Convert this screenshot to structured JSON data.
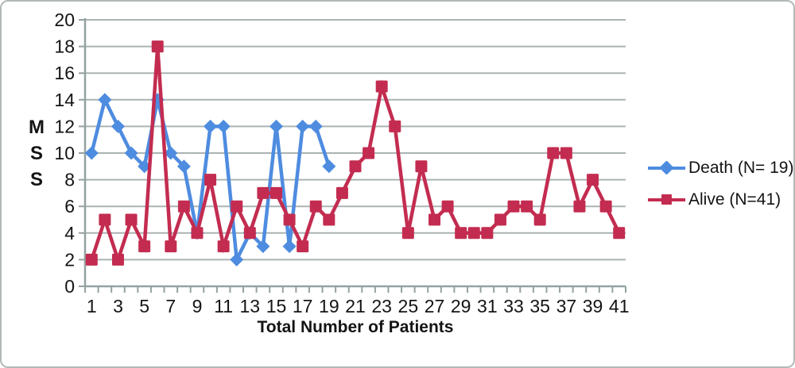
{
  "chart_data": {
    "type": "line",
    "title": "",
    "xlabel": "Total Number of Patients",
    "ylabel": "MSS",
    "ylabel_letters": [
      "M",
      "S",
      "S"
    ],
    "categories": [
      1,
      2,
      3,
      4,
      5,
      6,
      7,
      8,
      9,
      10,
      11,
      12,
      13,
      14,
      15,
      16,
      17,
      18,
      19,
      20,
      21,
      22,
      23,
      24,
      25,
      26,
      27,
      28,
      29,
      30,
      31,
      32,
      33,
      34,
      35,
      36,
      37,
      38,
      39,
      40,
      41
    ],
    "x_tick_labels": [
      1,
      3,
      5,
      7,
      9,
      11,
      13,
      15,
      17,
      19,
      21,
      23,
      25,
      27,
      29,
      31,
      33,
      35,
      37,
      39,
      41
    ],
    "yticks": [
      0,
      2,
      4,
      6,
      8,
      10,
      12,
      14,
      16,
      18,
      20
    ],
    "ylim": [
      0,
      20
    ],
    "grid": true,
    "legend_position": "right",
    "series": [
      {
        "name": "Death (N= 19)",
        "color": "#4E8CE0",
        "marker": "diamond",
        "values": [
          10,
          14,
          12,
          10,
          9,
          14,
          10,
          9,
          4,
          12,
          12,
          2,
          4,
          3,
          12,
          3,
          12,
          12,
          9
        ]
      },
      {
        "name": "Alive (N=41)",
        "color": "#C32C50",
        "marker": "square",
        "values": [
          2,
          5,
          2,
          5,
          3,
          18,
          3,
          6,
          4,
          8,
          3,
          6,
          4,
          7,
          7,
          5,
          3,
          6,
          5,
          7,
          9,
          10,
          15,
          12,
          4,
          9,
          5,
          6,
          4,
          4,
          4,
          5,
          6,
          6,
          5,
          10,
          10,
          6,
          8,
          6,
          4
        ]
      }
    ],
    "gridline_color": "#ABB3B3",
    "axis_color": "#95A1A1",
    "text_color": "#141414"
  }
}
